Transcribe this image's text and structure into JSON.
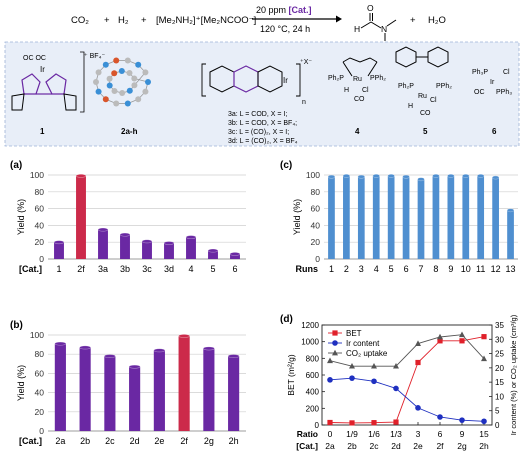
{
  "scheme": {
    "reactants": [
      "CO₂",
      "+",
      "H₂",
      "+",
      "[Me₂NH₂]⁺[Me₂NCOO⁻]"
    ],
    "condition_top_prefix": "20 ppm",
    "condition_top_cat": "[Cat.]",
    "condition_bottom": "120 °C, 24 h",
    "product_h": "H",
    "product_n": "N",
    "product_o": "O",
    "plus": "+",
    "byproduct": "H₂O"
  },
  "catalysts": {
    "c1_label": "1",
    "c1_ligands": "OC  OC",
    "c1_metal": "Ir",
    "c1_anion": "⁺ BF₄⁻",
    "c2_label": "2a-h",
    "c3_metal": "Ir",
    "c3_charge": "⁺X⁻",
    "c3_sub": "n",
    "c3_lines": [
      "3a: L = COD, X = I;",
      "3b: L = COD, X = BF₄;",
      "3c: L = (CO)₂, X = I;",
      "3d: L = (CO)₂, X = BF₄"
    ],
    "c4_label": "4",
    "c4_text": [
      "Ph₂P",
      "Ru",
      "PPh₂",
      "H",
      "Cl",
      "CO"
    ],
    "c5_label": "5",
    "c5_text": [
      "Ph₂P",
      "Ru",
      "PPh₂",
      "H",
      "Cl",
      "CO"
    ],
    "c6_label": "6",
    "c6_text": [
      "Ph₃P",
      "Ir",
      "Cl",
      "OC",
      "PPh₃"
    ]
  },
  "colors": {
    "purple": "#6a28a3",
    "red": "#cc2a4a",
    "blue": "#4f8fd0",
    "panel": "#e8eef8"
  },
  "chart_data": [
    {
      "panel": "(a)",
      "type": "bar",
      "ylabel": "Yield (%)",
      "xaxis_title": "[Cat.]",
      "ylim": [
        0,
        100
      ],
      "yticks": [
        0,
        20,
        40,
        60,
        80,
        100
      ],
      "categories": [
        "1",
        "2f",
        "3a",
        "3b",
        "3c",
        "3d",
        "4",
        "5",
        "6"
      ],
      "values": [
        20,
        99,
        35,
        29,
        21,
        19,
        26,
        10,
        6
      ],
      "highlight": "2f"
    },
    {
      "panel": "(b)",
      "type": "bar",
      "ylabel": "Yield (%)",
      "xaxis_title": "[Cat.]",
      "ylim": [
        0,
        100
      ],
      "yticks": [
        0,
        20,
        40,
        60,
        80,
        100
      ],
      "categories": [
        "2a",
        "2b",
        "2c",
        "2d",
        "2e",
        "2f",
        "2g",
        "2h"
      ],
      "values": [
        91,
        87,
        78,
        67,
        84,
        99,
        86,
        78
      ],
      "highlight": "2f"
    },
    {
      "panel": "(c)",
      "type": "bar",
      "ylabel": "Yield (%)",
      "xaxis_title": "Runs",
      "ylim": [
        0,
        100
      ],
      "yticks": [
        0,
        20,
        40,
        60,
        80,
        100
      ],
      "categories": [
        "1",
        "2",
        "3",
        "4",
        "5",
        "6",
        "7",
        "8",
        "9",
        "10",
        "11",
        "12",
        "13"
      ],
      "values": [
        98,
        99,
        98,
        99,
        99,
        98,
        95,
        99,
        99,
        99,
        99,
        97,
        58
      ]
    },
    {
      "panel": "(d)",
      "type": "line",
      "ylabel_left": "BET (m²/g)",
      "ylabel_right": "Ir content (%) or CO₂ uptake (cm³/g)",
      "ylim_left": [
        0,
        1200
      ],
      "yticks_left": [
        0,
        200,
        400,
        600,
        800,
        1000,
        1200
      ],
      "ylim_right": [
        0,
        35
      ],
      "yticks_right": [
        0,
        5,
        10,
        15,
        20,
        25,
        30,
        35
      ],
      "x_title_1": "Ratio",
      "x_title_2": "[Cat.]",
      "ratio_labels": [
        "0",
        "1/9",
        "1/6",
        "1/3",
        "3",
        "6",
        "9",
        "15"
      ],
      "categories": [
        "2a",
        "2b",
        "2c",
        "2d",
        "2e",
        "2f",
        "2g",
        "2h"
      ],
      "series": [
        {
          "name": "BET",
          "axis": "left",
          "marker": "square",
          "color": "#e0202a",
          "values": [
            30,
            25,
            28,
            35,
            750,
            1010,
            1010,
            1060
          ]
        },
        {
          "name": "Ir content",
          "axis": "right",
          "marker": "circle",
          "color": "#1f30c0",
          "values": [
            15.8,
            16.4,
            15.3,
            12.8,
            6.0,
            2.8,
            1.7,
            1.3
          ]
        },
        {
          "name": "CO₂ uptake",
          "axis": "right",
          "marker": "triangle",
          "color": "#555555",
          "values": [
            22.5,
            20.6,
            20.6,
            20.6,
            28.5,
            30.8,
            31.6,
            23.2
          ]
        }
      ]
    }
  ]
}
